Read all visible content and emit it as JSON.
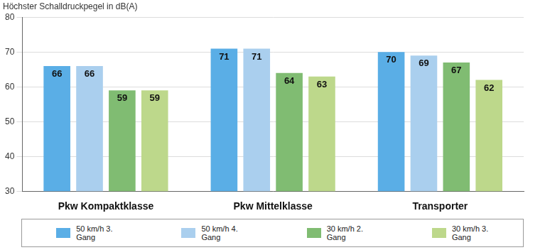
{
  "chart_data": {
    "type": "bar",
    "title": "Höchster Schalldruckpegel in dB(A)",
    "categories": [
      "Pkw Kompaktklasse",
      "Pkw Mittelklasse",
      "Transporter"
    ],
    "series": [
      {
        "name": "50 km/h 3. Gang",
        "color": "#5aaee6",
        "values": [
          66,
          71,
          70
        ]
      },
      {
        "name": "50 km/h 4. Gang",
        "color": "#aacfee",
        "values": [
          66,
          71,
          69
        ]
      },
      {
        "name": "30 km/h 2. Gang",
        "color": "#80bc72",
        "values": [
          59,
          64,
          67
        ]
      },
      {
        "name": "30 km/h 3. Gang",
        "color": "#bdd88b",
        "values": [
          59,
          63,
          62
        ]
      }
    ],
    "ylim": [
      30,
      80
    ],
    "yticks": [
      30,
      40,
      50,
      60,
      70,
      80
    ],
    "grid": true,
    "legend": "bottom",
    "data_labels": true
  }
}
